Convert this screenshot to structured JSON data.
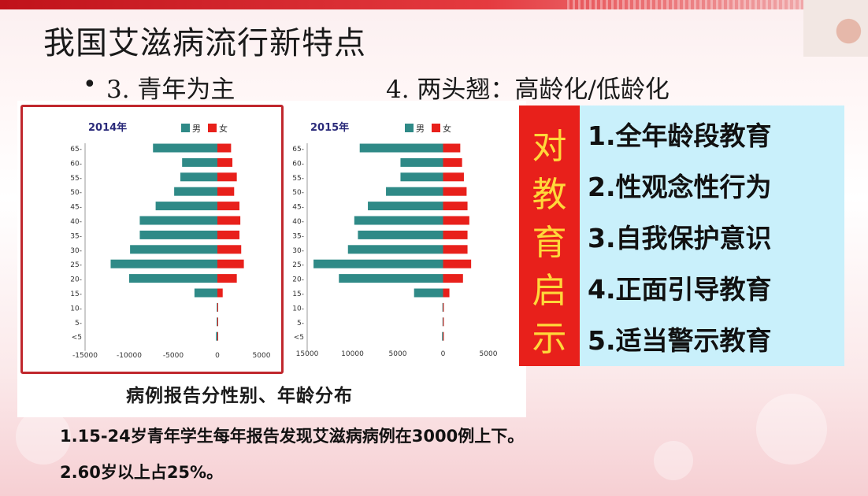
{
  "slide": {
    "title": "我国艾滋病流行新特点",
    "point3": "3. 青年为主",
    "point4": "4. 两头翘：高龄化/低龄化",
    "bullet": "•"
  },
  "chart_caption": "病例报告分性别、年龄分布",
  "education": {
    "side_chars": [
      "对",
      "教",
      "育",
      "启",
      "示"
    ],
    "items": [
      "1.全年龄段教育",
      "2.性观念性行为",
      "3.自我保护意识",
      "4.正面引导教育",
      "5.适当警示教育"
    ]
  },
  "notes": [
    "1.15-24岁青年学生每年报告发现艾滋病病例在3000例上下。",
    "2.60岁以上占25%。"
  ],
  "colors": {
    "male": "#2f8a87",
    "female": "#e8201b",
    "accent_red": "#c0272d",
    "edu_bg": "#c9f0fb",
    "edu_char": "#ffd83a"
  },
  "chart_data": [
    {
      "type": "bar",
      "title": "2014年",
      "legend": [
        "男",
        "女"
      ],
      "categories": [
        "65-",
        "60-",
        "55-",
        "50-",
        "45-",
        "40-",
        "35-",
        "30-",
        "25-",
        "20-",
        "15-",
        "10-",
        "5-",
        "<5"
      ],
      "series": [
        {
          "name": "男",
          "values": [
            -7300,
            -4000,
            -4200,
            -4900,
            -7000,
            -8800,
            -8800,
            -9900,
            -12100,
            -10000,
            -2600,
            -70,
            -80,
            -150
          ]
        },
        {
          "name": "女",
          "values": [
            1550,
            1700,
            2200,
            1900,
            2500,
            2600,
            2500,
            2700,
            3000,
            2200,
            600,
            20,
            30,
            60
          ]
        }
      ],
      "xlim": [
        -15000,
        5000
      ],
      "xticks": [
        "-15000",
        "-10000",
        "-5000",
        "0",
        "5000"
      ],
      "legend_position": "top"
    },
    {
      "type": "bar",
      "title": "2015年",
      "legend": [
        "男",
        "女"
      ],
      "categories": [
        "65-",
        "60-",
        "55-",
        "50-",
        "45-",
        "40-",
        "35-",
        "30-",
        "25-",
        "20-",
        "15-",
        "10-",
        "5-",
        "<5"
      ],
      "series": [
        {
          "name": "男",
          "values": [
            -9200,
            -4700,
            -4700,
            -6300,
            -8300,
            -9800,
            -9400,
            -10500,
            -14300,
            -11500,
            -3200,
            -70,
            -60,
            -110
          ]
        },
        {
          "name": "女",
          "values": [
            1900,
            2100,
            2300,
            2600,
            2700,
            2900,
            2700,
            2700,
            3100,
            2200,
            700,
            20,
            30,
            40
          ]
        }
      ],
      "xlim": [
        -15000,
        5000
      ],
      "xticks": [
        "15000",
        "10000",
        "5000",
        "0",
        "5000"
      ],
      "legend_position": "top"
    }
  ]
}
